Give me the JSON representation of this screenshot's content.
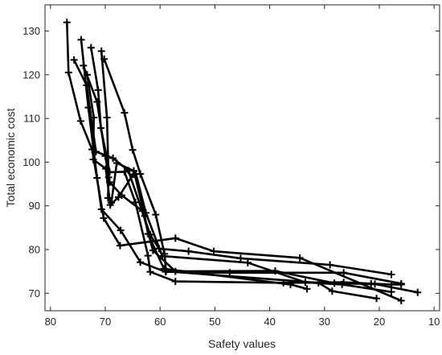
{
  "chart_data": {
    "type": "line",
    "title": "",
    "xlabel": "Safety values",
    "ylabel": "Total economic cost",
    "x_reversed": true,
    "xlim": [
      81,
      9
    ],
    "ylim": [
      66,
      136
    ],
    "xticks": [
      80,
      70,
      60,
      50,
      40,
      30,
      20,
      10
    ],
    "yticks": [
      70,
      80,
      90,
      100,
      110,
      120,
      130
    ],
    "grid": false,
    "legend": "none",
    "line_color": "#000000",
    "marker": "plus",
    "series": [
      {
        "points": [
          [
            77.0,
            132.0
          ],
          [
            76.7,
            120.5
          ],
          [
            74.5,
            109.4
          ],
          [
            72.4,
            102.9
          ],
          [
            70.3,
            87.2
          ],
          [
            67.3,
            80.9
          ],
          [
            57.2,
            82.6
          ],
          [
            50.2,
            79.6
          ],
          [
            34.5,
            78.1
          ],
          [
            16.0,
            68.3
          ]
        ]
      },
      {
        "points": [
          [
            75.7,
            123.4
          ],
          [
            73.4,
            117.6
          ],
          [
            71.7,
            102.4
          ],
          [
            68.6,
            100.9
          ],
          [
            65.8,
            98.1
          ],
          [
            61.8,
            83.4
          ],
          [
            60.2,
            80.2
          ],
          [
            54.8,
            79.6
          ],
          [
            45.3,
            78.0
          ],
          [
            29.0,
            76.5
          ],
          [
            17.8,
            74.3
          ]
        ]
      },
      {
        "points": [
          [
            74.4,
            128.0
          ],
          [
            73.1,
            112.5
          ],
          [
            71.5,
            96.4
          ],
          [
            70.7,
            89.2
          ],
          [
            67.2,
            84.4
          ],
          [
            63.6,
            77.1
          ],
          [
            59.0,
            74.9
          ],
          [
            47.3,
            74.7
          ],
          [
            26.5,
            74.7
          ],
          [
            16.0,
            72.2
          ]
        ]
      },
      {
        "points": [
          [
            74.0,
            122.1
          ],
          [
            71.5,
            113.8
          ],
          [
            70.0,
            101.4
          ],
          [
            69.2,
            95.4
          ],
          [
            67.0,
            92.4
          ],
          [
            63.2,
            88.8
          ],
          [
            61.3,
            79.8
          ],
          [
            57.2,
            75.0
          ],
          [
            39.0,
            75.1
          ],
          [
            28.2,
            72.3
          ],
          [
            20.8,
            72.1
          ],
          [
            13.0,
            70.2
          ]
        ]
      },
      {
        "points": [
          [
            73.3,
            120.0
          ],
          [
            72.1,
            110.2
          ],
          [
            72.2,
            100.6
          ],
          [
            69.9,
            98.5
          ],
          [
            69.1,
            90.2
          ],
          [
            67.6,
            92.0
          ],
          [
            64.9,
            97.2
          ],
          [
            64.4,
            97.3
          ],
          [
            62.6,
            88.4
          ],
          [
            59.6,
            78.5
          ],
          [
            44.0,
            77.0
          ],
          [
            33.5,
            72.5
          ],
          [
            26.8,
            72.0
          ],
          [
            17.8,
            70.3
          ]
        ]
      },
      {
        "points": [
          [
            72.6,
            126.2
          ],
          [
            71.3,
            116.5
          ],
          [
            70.8,
            107.8
          ],
          [
            69.2,
            97.7
          ],
          [
            66.5,
            97.8
          ],
          [
            64.5,
            90.8
          ],
          [
            62.2,
            78.6
          ],
          [
            61.8,
            74.9
          ],
          [
            57.2,
            72.7
          ],
          [
            37.5,
            72.4
          ],
          [
            26.5,
            72.5
          ],
          [
            21.5,
            72.2
          ],
          [
            17.8,
            72.0
          ],
          [
            16.0,
            72.0
          ]
        ]
      },
      {
        "points": [
          [
            70.7,
            125.4
          ],
          [
            69.7,
            110.2
          ],
          [
            69.4,
            96.5
          ],
          [
            69.5,
            91.8
          ],
          [
            68.9,
            90.7
          ],
          [
            67.9,
            99.8
          ],
          [
            64.8,
            98.0
          ],
          [
            62.8,
            87.7
          ],
          [
            62.2,
            83.6
          ],
          [
            59.3,
            75.6
          ],
          [
            36.2,
            72.0
          ],
          [
            33.2,
            71.0
          ]
        ]
      },
      {
        "points": [
          [
            70.2,
            123.6
          ],
          [
            66.5,
            111.3
          ],
          [
            65.0,
            102.8
          ],
          [
            63.6,
            97.3
          ],
          [
            60.8,
            88.0
          ],
          [
            59.2,
            79.0
          ],
          [
            58.9,
            75.0
          ],
          [
            31.1,
            72.4
          ],
          [
            28.6,
            70.5
          ],
          [
            20.5,
            68.8
          ]
        ]
      }
    ]
  }
}
